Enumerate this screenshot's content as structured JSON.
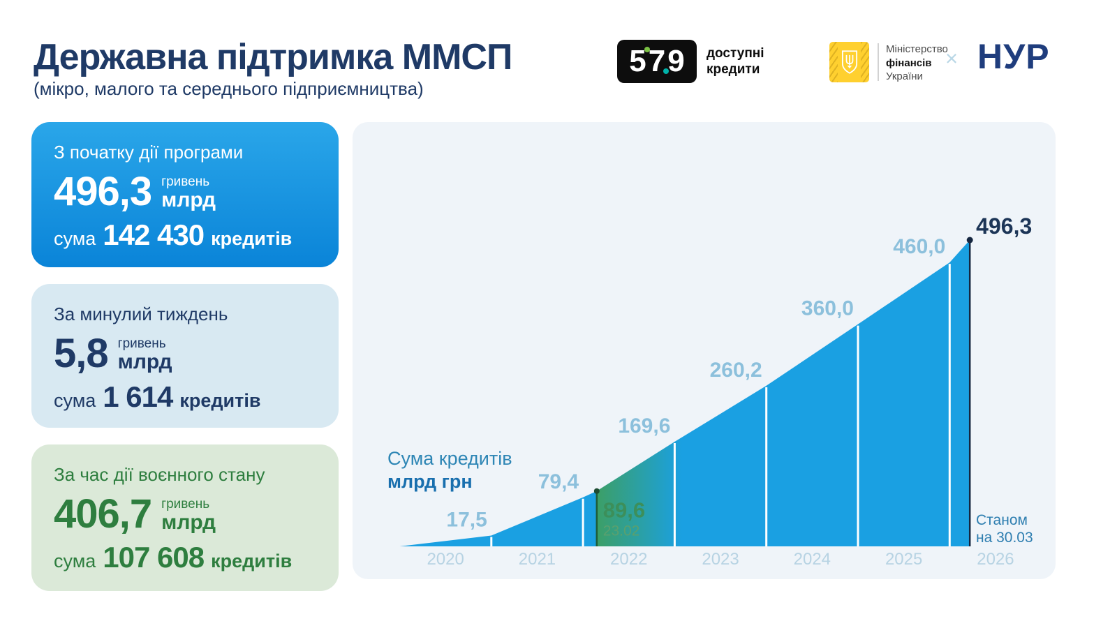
{
  "header": {
    "title": "Державна підтримка ММСП",
    "subtitle": "(мікро, малого та середнього підприємництва)"
  },
  "logos": {
    "program_579": {
      "d5": "5",
      "d7": "7",
      "d9": "9",
      "label_line1": "доступні",
      "label_line2": "кредити"
    },
    "ministry": {
      "line1": "Міністерство",
      "line2": "фінансів",
      "line3": "України"
    },
    "collab_x": "×",
    "partner": "НУР"
  },
  "cards": [
    {
      "title": "З початку дії програми",
      "amount": "496,3",
      "unit_top": "гривень",
      "unit_bottom": "млрд",
      "sum_prefix": "сума",
      "count": "142 430",
      "count_unit": "кредитів"
    },
    {
      "title": "За минулий тиждень",
      "amount": "5,8",
      "unit_top": "гривень",
      "unit_bottom": "млрд",
      "sum_prefix": "сума",
      "count": "1 614",
      "count_unit": "кредитів"
    },
    {
      "title": "За час дії воєнного стану",
      "amount": "406,7",
      "unit_top": "гривень",
      "unit_bottom": "млрд",
      "sum_prefix": "сума",
      "count": "107 608",
      "count_unit": "кредитів"
    }
  ],
  "chart": {
    "legend_line1": "Сума кредитів",
    "legend_line2": "млрд грн",
    "asof_line1": "Станом",
    "asof_line2": "на 30.03"
  },
  "chart_data": {
    "type": "area",
    "title": "Сума кредитів",
    "ylabel": "млрд грн",
    "x": [
      2020,
      2021,
      2022,
      2022.15,
      2023,
      2024,
      2025,
      2026,
      2026.22
    ],
    "values": [
      0,
      17.5,
      79.4,
      89.6,
      169.6,
      260.2,
      360.0,
      460.0,
      496.3
    ],
    "labels": [
      "",
      "17,5",
      "79,4",
      "89,6",
      "169,6",
      "260,2",
      "360,0",
      "460,0",
      "496,3"
    ],
    "war_index": 3,
    "war_date_label": "23.02",
    "asof_label": "Станом на 30.03",
    "x_ticks": [
      "2020",
      "2021",
      "2022",
      "2023",
      "2024",
      "2025",
      "2026"
    ],
    "xlim": [
      2020,
      2026.22
    ],
    "ylim": [
      0,
      496.3
    ],
    "legend_position": "left-middle",
    "grid": false,
    "colors": {
      "area": "#1aa0e2",
      "panel_bg": "#eff4f9",
      "value_label": "#8cc0dc",
      "year_tick": "#b7d3e3",
      "war_green": "#3c8f5a",
      "war_line": "#1e5c38",
      "current_navy": "#1c3557",
      "separator": "#ffffff"
    }
  }
}
